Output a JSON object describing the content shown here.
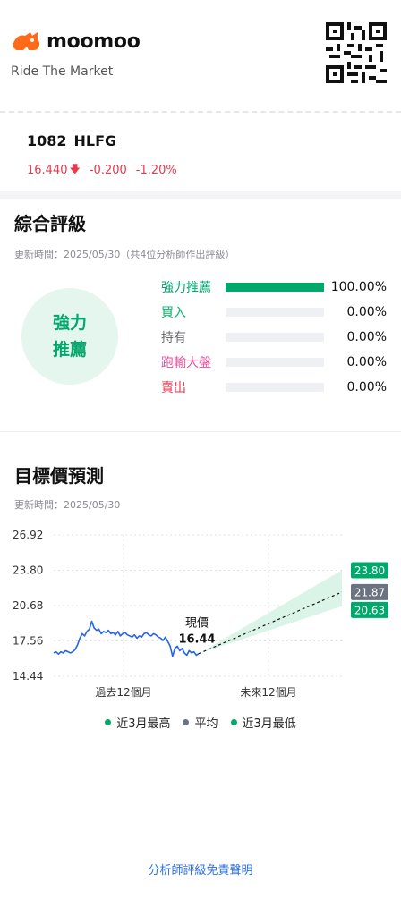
{
  "header": {
    "brand": "moomoo",
    "tagline": "Ride The Market"
  },
  "stock": {
    "code": "1082",
    "ticker": "HLFG",
    "price": "16.440",
    "change": "-0.200",
    "change_pct": "-1.20%",
    "colors": {
      "down": "#e63a4f"
    }
  },
  "rating": {
    "title": "綜合評級",
    "updated": "更新時間：2025/05/30（共4位分析師作出評級）",
    "badge": [
      "強力",
      "推薦"
    ],
    "rows": [
      {
        "label": "強力推薦",
        "pct": "100.00%",
        "value": 1.0,
        "color": "#00a86b"
      },
      {
        "label": "買入",
        "pct": "0.00%",
        "value": 0.0,
        "color": "#00b46e"
      },
      {
        "label": "持有",
        "pct": "0.00%",
        "value": 0.0,
        "color": "#6b6b73"
      },
      {
        "label": "跑輸大盤",
        "pct": "0.00%",
        "value": 0.0,
        "color": "#e2509a"
      },
      {
        "label": "賣出",
        "pct": "0.00%",
        "value": 0.0,
        "color": "#e63a4f"
      }
    ]
  },
  "forecast": {
    "title": "目標價預測",
    "updated": "更新時間：2025/05/30"
  },
  "chart_data": {
    "type": "line",
    "y_ticks": [
      "26.92",
      "23.80",
      "20.68",
      "17.56",
      "14.44"
    ],
    "ylim": [
      14.44,
      26.92
    ],
    "x_labels": [
      "過去12個月",
      "未來12個月"
    ],
    "current_label": "現價",
    "current_value": "16.44",
    "current": 16.44,
    "targets": {
      "high": {
        "label": "23.80",
        "value": 23.8,
        "color": "#00a86b"
      },
      "avg": {
        "label": "21.87",
        "value": 21.87,
        "color": "#6b7280"
      },
      "low": {
        "label": "20.63",
        "value": 20.63,
        "color": "#00a86b"
      }
    },
    "series": [
      {
        "color": "#2563eb",
        "values": [
          16.5,
          16.6,
          16.4,
          16.6,
          16.5,
          16.7,
          16.6,
          16.5,
          16.6,
          16.8,
          17.2,
          17.8,
          18.2,
          18.0,
          18.4,
          18.6,
          19.3,
          18.7,
          18.5,
          18.6,
          18.2,
          18.4,
          18.3,
          18.5,
          18.2,
          18.3,
          18.1,
          18.4,
          18.0,
          18.2,
          18.3,
          18.1,
          18.0,
          17.9,
          18.1,
          17.8,
          18.0,
          17.9,
          18.2,
          18.3,
          18.1,
          18.0,
          18.2,
          18.1,
          17.9,
          17.8,
          17.6,
          17.9,
          17.5,
          17.1,
          16.2,
          16.9,
          17.1,
          16.7,
          16.9,
          16.5,
          16.3,
          16.7,
          16.5,
          16.6,
          16.3,
          16.44
        ]
      }
    ]
  },
  "legend": [
    {
      "label": "近3月最高",
      "color": "#00a86b"
    },
    {
      "label": "平均",
      "color": "#6b7280"
    },
    {
      "label": "近3月最低",
      "color": "#00a86b"
    }
  ],
  "disclaimer": "分析師評級免責聲明"
}
